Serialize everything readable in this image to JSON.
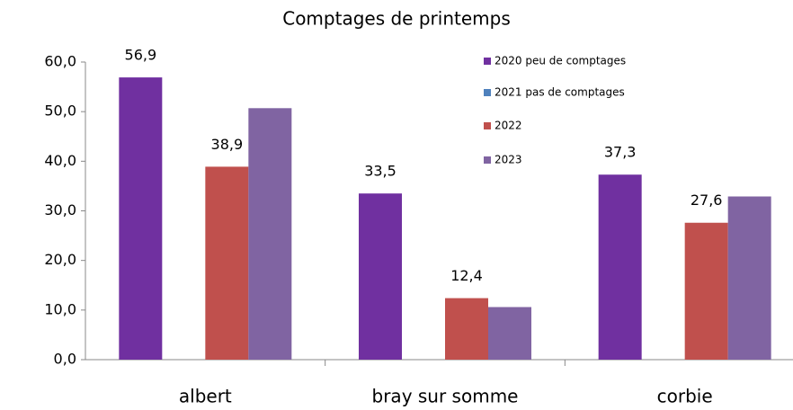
{
  "chart_data": {
    "type": "bar",
    "title": "Comptages de printemps",
    "categories": [
      "albert",
      "bray sur somme",
      "corbie"
    ],
    "series": [
      {
        "name": "2020 peu de comptages",
        "color": "#7030a0",
        "values": [
          56.9,
          33.5,
          37.3
        ],
        "value_labels": [
          "56,9",
          "33,5",
          "37,3"
        ]
      },
      {
        "name": "2021 pas de comptages",
        "color": "#4f81bd",
        "values": [
          null,
          null,
          null
        ]
      },
      {
        "name": "2022",
        "color": "#c0504d",
        "values": [
          38.9,
          12.4,
          27.6
        ],
        "value_labels": [
          "38,9",
          "12,4",
          "27,6"
        ]
      },
      {
        "name": "2023",
        "color": "#8064a2",
        "values": [
          50.7,
          10.6,
          32.9
        ]
      }
    ],
    "ylim": [
      0,
      60
    ],
    "yticks": [
      {
        "value": 0,
        "label": "0,0"
      },
      {
        "value": 10,
        "label": "10,0"
      },
      {
        "value": 20,
        "label": "20,0"
      },
      {
        "value": 30,
        "label": "30,0"
      },
      {
        "value": 40,
        "label": "40,0"
      },
      {
        "value": 50,
        "label": "50,0"
      },
      {
        "value": 60,
        "label": "60,0"
      }
    ],
    "legend": "upper right",
    "grid": false
  }
}
